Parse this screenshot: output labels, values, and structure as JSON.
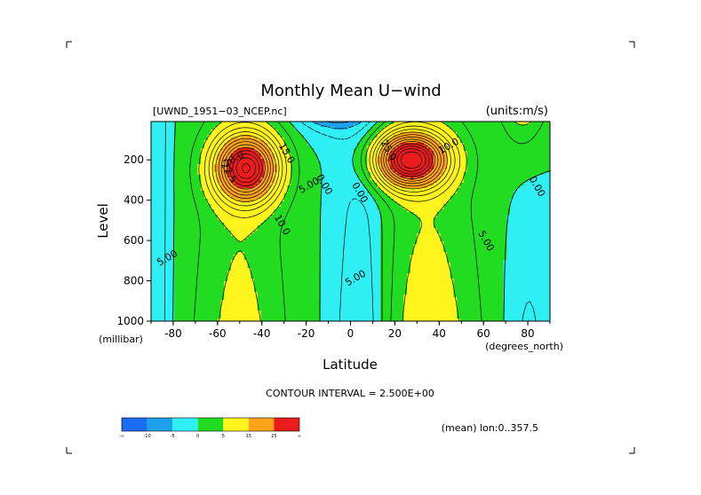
{
  "chart_data": {
    "type": "heatmap",
    "title": "Monthly Mean U−wind",
    "dataset_label": "[UWND_1951−03_NCEP.nc]",
    "units_label": "(units:m/s)",
    "xlabel": "Latitude",
    "x_units": "(degrees_north)",
    "ylabel": "Level",
    "y_units": "(millibar)",
    "xlim": [
      -90,
      90
    ],
    "ylim": [
      1000,
      10
    ],
    "x_ticks": [
      -80,
      -60,
      -40,
      -20,
      0,
      20,
      40,
      60,
      80
    ],
    "y_ticks": [
      200,
      400,
      600,
      800,
      1000
    ],
    "contour_interval_text": "CONTOUR INTERVAL = 2.500E+00",
    "mean_label": "(mean) lon:0..357.5",
    "contour_labels": [
      {
        "text": "20.0",
        "lat": -52,
        "level": 210
      },
      {
        "text": "15.0",
        "lat": -30,
        "level": 175
      },
      {
        "text": "22.5",
        "lat": -56,
        "level": 270
      },
      {
        "text": "5.00",
        "lat": -18,
        "level": 340
      },
      {
        "text": "0.00",
        "lat": -13,
        "level": 330
      },
      {
        "text": "10.0",
        "lat": -32,
        "level": 530
      },
      {
        "text": "5.00",
        "lat": -82,
        "level": 700
      },
      {
        "text": "0.00",
        "lat": 3,
        "level": 370
      },
      {
        "text": "25.0",
        "lat": 16,
        "level": 160
      },
      {
        "text": "10.0",
        "lat": 45,
        "level": 145
      },
      {
        "text": "0.00",
        "lat": 83,
        "level": 340
      },
      {
        "text": "5.00",
        "lat": 60,
        "level": 610
      },
      {
        "text": "5.00",
        "lat": 3,
        "level": 800
      }
    ],
    "jets": [
      {
        "lat": -47,
        "level": 240,
        "max": 32
      },
      {
        "lat": 27,
        "level": 200,
        "max": 35
      }
    ],
    "colorbar": {
      "colors": [
        "#1a6cf2",
        "#1ea1ea",
        "#2ef0f4",
        "#22dc22",
        "#fff51d",
        "#ffa31b",
        "#ec1c1c"
      ],
      "labels": [
        "-∞",
        "-10",
        "-5",
        "0",
        "5",
        "15",
        "25",
        "∞"
      ]
    },
    "grid": false
  }
}
